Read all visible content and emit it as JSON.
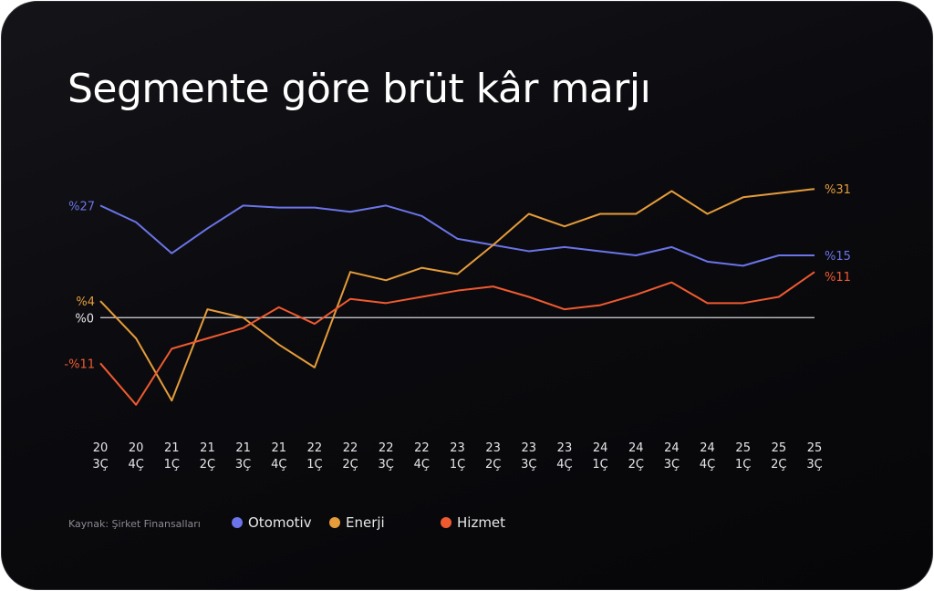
{
  "title": "Segmente göre brüt kâr marjı",
  "source": "Kaynak: Şirket Finansalları",
  "chart_data": {
    "type": "line",
    "title": "Segmente göre brüt kâr marjı",
    "xlabel": "",
    "ylabel": "",
    "ylim": [
      -25,
      35
    ],
    "grid": false,
    "legend_position": "bottom",
    "zero_line_label": "%0",
    "categories": [
      [
        "20",
        "3Ç"
      ],
      [
        "20",
        "4Ç"
      ],
      [
        "21",
        "1Ç"
      ],
      [
        "21",
        "2Ç"
      ],
      [
        "21",
        "3Ç"
      ],
      [
        "21",
        "4Ç"
      ],
      [
        "22",
        "1Ç"
      ],
      [
        "22",
        "2Ç"
      ],
      [
        "22",
        "3Ç"
      ],
      [
        "22",
        "4Ç"
      ],
      [
        "23",
        "1Ç"
      ],
      [
        "23",
        "2Ç"
      ],
      [
        "23",
        "3Ç"
      ],
      [
        "23",
        "4Ç"
      ],
      [
        "24",
        "1Ç"
      ],
      [
        "24",
        "2Ç"
      ],
      [
        "24",
        "3Ç"
      ],
      [
        "24",
        "4Ç"
      ],
      [
        "25",
        "1Ç"
      ],
      [
        "25",
        "2Ç"
      ],
      [
        "25",
        "3Ç"
      ]
    ],
    "series": [
      {
        "name": "Otomotiv",
        "color": "#6b74e8",
        "start_label": "%27",
        "end_label": "%15",
        "values": [
          27,
          23,
          15.5,
          21.5,
          27,
          26.5,
          26.5,
          25.5,
          27,
          24.5,
          19,
          17.5,
          16,
          17,
          16,
          15,
          17,
          13.5,
          12.5,
          15,
          15
        ]
      },
      {
        "name": "Enerji",
        "color": "#e59c3a",
        "start_label": "%4",
        "end_label": "%31",
        "values": [
          4,
          -5,
          -20,
          2,
          0,
          -6.5,
          -12,
          11,
          9,
          12,
          10.5,
          17.5,
          25,
          22,
          25,
          25,
          30.5,
          25,
          29,
          30,
          31
        ]
      },
      {
        "name": "Hizmet",
        "color": "#f05a30",
        "start_label": "-%11",
        "end_label": "%11",
        "values": [
          -11,
          -21,
          -7.5,
          -5,
          -2.5,
          2.5,
          -1.5,
          4.5,
          3.5,
          5,
          6.5,
          7.5,
          5,
          2,
          3,
          5.5,
          8.5,
          3.5,
          3.5,
          5,
          11
        ]
      }
    ]
  }
}
